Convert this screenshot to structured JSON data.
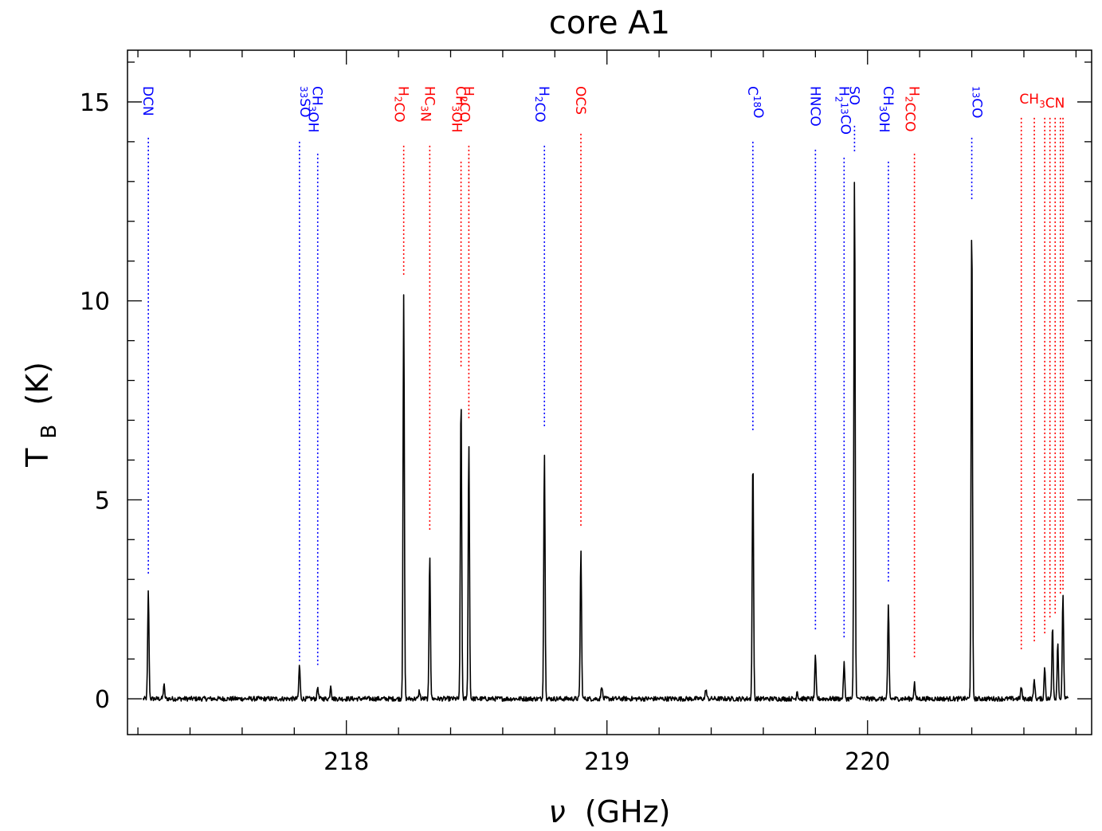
{
  "chart_data": {
    "type": "line",
    "title": "core A1",
    "xlabel": {
      "symbol": "ν",
      "unit": "(GHz)"
    },
    "ylabel": {
      "main": "T",
      "sub": "B",
      "unit": "(K)"
    },
    "xlim": [
      217.16,
      220.86
    ],
    "ylim": [
      -0.9,
      16.3
    ],
    "xticks": [
      218,
      219,
      220
    ],
    "yticks": [
      0,
      5,
      10,
      15
    ],
    "grid": false,
    "colors": {
      "blue": "#0000ff",
      "red": "#ff0000",
      "spectrum": "#000000"
    },
    "peaks": [
      {
        "x": 217.24,
        "y": 2.7
      },
      {
        "x": 217.3,
        "y": 0.35
      },
      {
        "x": 217.82,
        "y": 0.85
      },
      {
        "x": 217.89,
        "y": 0.3
      },
      {
        "x": 217.94,
        "y": 0.35
      },
      {
        "x": 218.22,
        "y": 10.1
      },
      {
        "x": 218.28,
        "y": 0.2
      },
      {
        "x": 218.32,
        "y": 3.65
      },
      {
        "x": 218.44,
        "y": 7.7
      },
      {
        "x": 218.47,
        "y": 6.4
      },
      {
        "x": 218.76,
        "y": 6.2
      },
      {
        "x": 218.9,
        "y": 3.75
      },
      {
        "x": 218.98,
        "y": 0.35
      },
      {
        "x": 219.38,
        "y": 0.25
      },
      {
        "x": 219.56,
        "y": 6.1
      },
      {
        "x": 219.73,
        "y": 0.2
      },
      {
        "x": 219.8,
        "y": 1.05
      },
      {
        "x": 219.91,
        "y": 0.9
      },
      {
        "x": 219.95,
        "y": 13.2
      },
      {
        "x": 220.08,
        "y": 2.35
      },
      {
        "x": 220.18,
        "y": 0.4
      },
      {
        "x": 220.4,
        "y": 12.05
      },
      {
        "x": 220.59,
        "y": 0.3
      },
      {
        "x": 220.64,
        "y": 0.5
      },
      {
        "x": 220.68,
        "y": 0.8
      },
      {
        "x": 220.71,
        "y": 1.85
      },
      {
        "x": 220.73,
        "y": 1.4
      },
      {
        "x": 220.75,
        "y": 2.65
      }
    ],
    "line_markers": [
      {
        "label": "DCN",
        "label_pos": "top",
        "x": 217.24,
        "y_top": 14.1,
        "y_bottom": 3.1,
        "color": "blue"
      },
      {
        "label": "³³SO",
        "label_pos": "top",
        "x": 217.82,
        "y_top": 14.0,
        "y_bottom": 0.95,
        "color": "blue"
      },
      {
        "label": "CH₃OH",
        "label_pos": "top",
        "x": 217.89,
        "y_top": 13.7,
        "y_bottom": 0.85,
        "color": "blue"
      },
      {
        "label": "H₂CO",
        "label_pos": "top",
        "x": 218.22,
        "y_top": 13.9,
        "y_bottom": 10.6,
        "color": "red"
      },
      {
        "label": "HC₃N",
        "label_pos": "top",
        "x": 218.32,
        "y_top": 13.9,
        "y_bottom": 4.2,
        "color": "red"
      },
      {
        "label": "CH₃OH",
        "label_pos": "top",
        "x": 218.44,
        "y_top": 13.5,
        "y_bottom": 8.3,
        "color": "red"
      },
      {
        "label": "H₂CO",
        "label_pos": "top",
        "x": 218.47,
        "y_top": 13.9,
        "y_bottom": 7.0,
        "color": "red"
      },
      {
        "label": "H₂CO",
        "label_pos": "top",
        "x": 218.76,
        "y_top": 13.9,
        "y_bottom": 6.8,
        "color": "blue"
      },
      {
        "label": "OCS",
        "label_pos": "top",
        "x": 218.9,
        "y_top": 14.2,
        "y_bottom": 4.3,
        "color": "red"
      },
      {
        "label": "C¹⁸O",
        "label_pos": "top",
        "x": 219.56,
        "y_top": 14.0,
        "y_bottom": 6.7,
        "color": "blue"
      },
      {
        "label": "HNCO",
        "label_pos": "top",
        "x": 219.8,
        "y_top": 13.8,
        "y_bottom": 1.7,
        "color": "blue"
      },
      {
        "label": "H₂¹³CO",
        "label_pos": "top",
        "x": 219.91,
        "y_top": 13.6,
        "y_bottom": 1.5,
        "color": "blue"
      },
      {
        "label": "SO",
        "label_pos": "top",
        "x": 219.95,
        "y_top": 14.4,
        "y_bottom": 13.7,
        "color": "blue"
      },
      {
        "label": "CH₃OH",
        "label_pos": "top",
        "x": 220.08,
        "y_top": 13.5,
        "y_bottom": 2.9,
        "color": "blue"
      },
      {
        "label": "H₂CCO",
        "label_pos": "top",
        "x": 220.18,
        "y_top": 13.7,
        "y_bottom": 1.0,
        "color": "red"
      },
      {
        "label": "¹³CO",
        "label_pos": "top",
        "x": 220.4,
        "y_top": 14.1,
        "y_bottom": 12.5,
        "color": "blue"
      },
      {
        "label": "CH₃CN",
        "label_pos": "top-group",
        "x": 220.59,
        "y_top": 14.6,
        "y_bottom": 1.2,
        "color": "red"
      },
      {
        "label": "",
        "x": 220.64,
        "y_top": 14.6,
        "y_bottom": 1.4,
        "color": "red"
      },
      {
        "label": "",
        "x": 220.68,
        "y_top": 14.6,
        "y_bottom": 1.6,
        "color": "red"
      },
      {
        "label": "",
        "x": 220.7,
        "y_top": 14.6,
        "y_bottom": 2.0,
        "color": "red"
      },
      {
        "label": "",
        "x": 220.72,
        "y_top": 14.6,
        "y_bottom": 2.1,
        "color": "red"
      },
      {
        "label": "",
        "x": 220.74,
        "y_top": 14.6,
        "y_bottom": 2.6,
        "color": "red"
      },
      {
        "label": "",
        "x": 220.75,
        "y_top": 14.6,
        "y_bottom": 2.7,
        "color": "red"
      }
    ],
    "marker_labels": [
      {
        "name": "label-dcn",
        "x": 217.24,
        "color": "blue",
        "parts": [
          [
            "DCN",
            ""
          ]
        ]
      },
      {
        "name": "label-33so",
        "x": 217.82,
        "color": "blue",
        "parts": [
          [
            "33",
            "sup"
          ],
          [
            "SO",
            ""
          ]
        ]
      },
      {
        "name": "label-ch3oh-1",
        "x": 217.89,
        "color": "blue",
        "parts": [
          [
            "CH",
            ""
          ],
          [
            "3",
            "sub"
          ],
          [
            "OH",
            ""
          ]
        ]
      },
      {
        "name": "label-h2co-1",
        "x": 218.22,
        "color": "red",
        "parts": [
          [
            "H",
            ""
          ],
          [
            "2",
            "sub"
          ],
          [
            "CO",
            ""
          ]
        ]
      },
      {
        "name": "label-hc3n",
        "x": 218.32,
        "color": "red",
        "parts": [
          [
            "HC",
            ""
          ],
          [
            "3",
            "sub"
          ],
          [
            "N",
            ""
          ]
        ]
      },
      {
        "name": "label-ch3oh-2",
        "x": 218.44,
        "color": "red",
        "parts": [
          [
            "CH",
            ""
          ],
          [
            "3",
            "sub"
          ],
          [
            "OH",
            ""
          ]
        ]
      },
      {
        "name": "label-h2co-2",
        "x": 218.47,
        "color": "red",
        "parts": [
          [
            "H",
            ""
          ],
          [
            "2",
            "sub"
          ],
          [
            "CO",
            ""
          ]
        ]
      },
      {
        "name": "label-h2co-3",
        "x": 218.76,
        "color": "blue",
        "parts": [
          [
            "H",
            ""
          ],
          [
            "2",
            "sub"
          ],
          [
            "CO",
            ""
          ]
        ]
      },
      {
        "name": "label-ocs",
        "x": 218.9,
        "color": "red",
        "parts": [
          [
            "OCS",
            ""
          ]
        ]
      },
      {
        "name": "label-c18o",
        "x": 219.56,
        "color": "blue",
        "parts": [
          [
            "C",
            ""
          ],
          [
            "18",
            "sup"
          ],
          [
            "O",
            ""
          ]
        ]
      },
      {
        "name": "label-hnco",
        "x": 219.8,
        "color": "blue",
        "parts": [
          [
            "HNCO",
            ""
          ]
        ]
      },
      {
        "name": "label-h213co",
        "x": 219.91,
        "color": "blue",
        "parts": [
          [
            "H",
            ""
          ],
          [
            "2",
            "sub"
          ],
          [
            "13",
            "sup"
          ],
          [
            "CO",
            ""
          ]
        ]
      },
      {
        "name": "label-so",
        "x": 219.95,
        "color": "blue",
        "parts": [
          [
            "SO",
            ""
          ]
        ]
      },
      {
        "name": "label-ch3oh-3",
        "x": 220.08,
        "color": "blue",
        "parts": [
          [
            "CH",
            ""
          ],
          [
            "3",
            "sub"
          ],
          [
            "OH",
            ""
          ]
        ]
      },
      {
        "name": "label-h2cco",
        "x": 220.18,
        "color": "red",
        "parts": [
          [
            "H",
            ""
          ],
          [
            "2",
            "sub"
          ],
          [
            "CCO",
            ""
          ]
        ]
      },
      {
        "name": "label-13co",
        "x": 220.4,
        "color": "blue",
        "parts": [
          [
            "13",
            "sup"
          ],
          [
            "CO",
            ""
          ]
        ]
      },
      {
        "name": "label-ch3cn",
        "x": 220.67,
        "color": "red",
        "horizontal": true,
        "parts": [
          [
            "CH",
            ""
          ],
          [
            "3",
            "sub"
          ],
          [
            "CN",
            ""
          ]
        ]
      }
    ]
  }
}
